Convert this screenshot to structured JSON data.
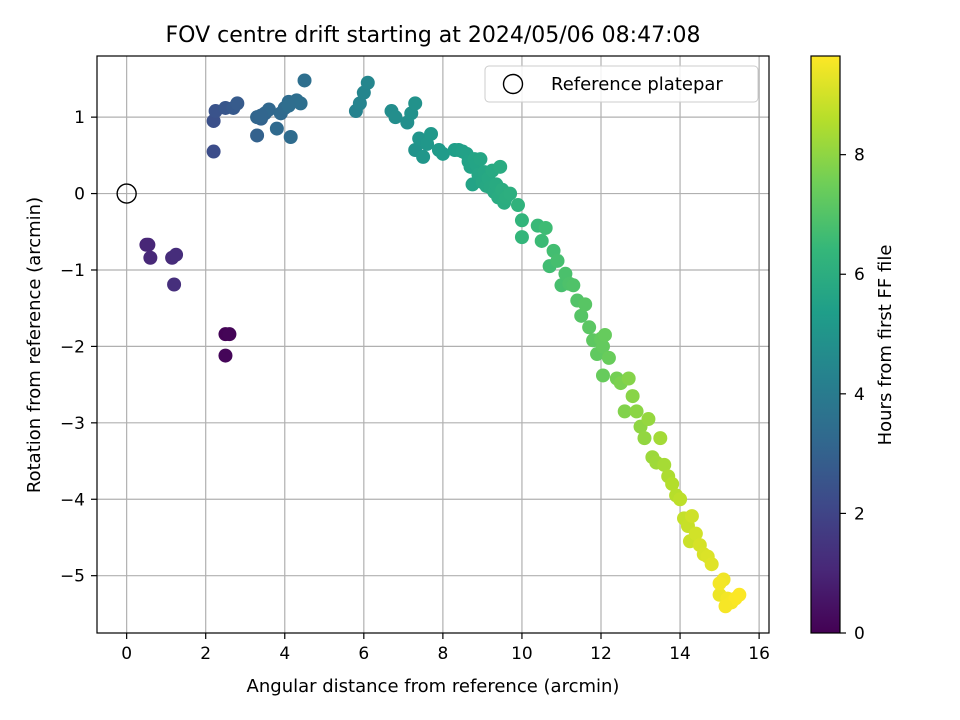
{
  "chart_data": {
    "type": "scatter",
    "title": "FOV centre drift starting at 2024/05/06 08:47:08",
    "xlabel": "Angular distance from reference (arcmin)",
    "ylabel": "Rotation from reference (arcmin)",
    "xlim": [
      -0.75,
      16.25
    ],
    "ylim": [
      -5.75,
      1.8
    ],
    "xticks": [
      0,
      2,
      4,
      6,
      8,
      10,
      12,
      14,
      16
    ],
    "yticks": [
      1,
      0,
      -1,
      -2,
      -3,
      -4,
      -5
    ],
    "xtick_labels": [
      "0",
      "2",
      "4",
      "6",
      "8",
      "10",
      "12",
      "14",
      "16"
    ],
    "ytick_labels": [
      "1",
      "0",
      "−1",
      "−2",
      "−3",
      "−4",
      "−5"
    ],
    "grid": true,
    "legend": {
      "placement": "top-right",
      "entries": [
        {
          "label": "Reference platepar",
          "marker": "open-circle"
        }
      ]
    },
    "reference_point": {
      "x": 0,
      "y": 0
    },
    "colorbar": {
      "label": "Hours from first FF file",
      "range": [
        0,
        9.65
      ],
      "ticks": [
        0,
        2,
        4,
        6,
        8
      ],
      "tick_labels": [
        "0",
        "2",
        "4",
        "6",
        "8"
      ],
      "colormap": "viridis",
      "stops": [
        "#440154",
        "#482878",
        "#3e4989",
        "#31688e",
        "#26828e",
        "#1f9e89",
        "#35b779",
        "#6ece58",
        "#b5de2b",
        "#fde725"
      ]
    },
    "series": [
      {
        "x": [
          2.5,
          2.6,
          2.5,
          0.5,
          0.55,
          0.6,
          1.15,
          1.25,
          1.2,
          2.2,
          2.2,
          2.25,
          2.5,
          2.7,
          2.8,
          3.3,
          3.4,
          3.5,
          3.6,
          3.3,
          3.4,
          3.8,
          3.9,
          4.0,
          4.1,
          4.15,
          4.3,
          4.4,
          4.1,
          4.5,
          5.8,
          5.9,
          6.0,
          6.1,
          6.7,
          6.8,
          7.1,
          7.2,
          7.3,
          7.3,
          7.4,
          7.5,
          7.6,
          7.7,
          7.9,
          8.0,
          8.3,
          8.4,
          8.5,
          8.6,
          8.65,
          8.7,
          8.75,
          8.8,
          8.85,
          8.9,
          8.95,
          9.0,
          9.05,
          9.1,
          9.15,
          9.2,
          9.25,
          9.3,
          9.35,
          9.4,
          9.45,
          9.5,
          9.55,
          9.6,
          9.7,
          9.9,
          10.0,
          10.0,
          10.4,
          10.5,
          10.6,
          10.7,
          10.8,
          10.9,
          11.0,
          11.1,
          11.2,
          11.3,
          11.4,
          11.5,
          11.6,
          11.7,
          11.8,
          11.9,
          12.0,
          12.05,
          12.1,
          12.2,
          12.05,
          12.4,
          12.5,
          12.6,
          12.7,
          12.8,
          12.9,
          13.0,
          13.1,
          13.2,
          13.3,
          13.4,
          13.5,
          13.6,
          13.7,
          13.8,
          13.9,
          14.0,
          14.1,
          14.2,
          14.25,
          14.3,
          14.4,
          14.5,
          14.6,
          14.7,
          14.8,
          15.0,
          15.1,
          15.2,
          15.3,
          15.4,
          15.5,
          15.0,
          15.15
        ],
        "y": [
          -1.84,
          -1.84,
          -2.12,
          -0.67,
          -0.67,
          -0.84,
          -0.84,
          -0.8,
          -1.19,
          0.55,
          0.95,
          1.08,
          1.12,
          1.12,
          1.18,
          0.76,
          0.98,
          1.05,
          1.1,
          1.0,
          1.02,
          0.85,
          1.05,
          1.12,
          1.2,
          0.74,
          1.22,
          1.18,
          1.15,
          1.48,
          1.08,
          1.18,
          1.32,
          1.45,
          1.08,
          1.0,
          0.93,
          1.05,
          1.18,
          0.57,
          0.72,
          0.48,
          0.65,
          0.78,
          0.57,
          0.52,
          0.57,
          0.57,
          0.55,
          0.52,
          0.42,
          0.35,
          0.12,
          0.45,
          0.38,
          0.25,
          0.45,
          0.15,
          0.28,
          0.1,
          0.2,
          0.08,
          0.3,
          0.02,
          0.12,
          -0.05,
          0.35,
          0.05,
          -0.12,
          -0.05,
          0.0,
          -0.15,
          -0.35,
          -0.57,
          -0.42,
          -0.62,
          -0.45,
          -0.95,
          -0.75,
          -0.88,
          -1.2,
          -1.05,
          -1.18,
          -1.2,
          -1.4,
          -1.6,
          -1.45,
          -1.75,
          -1.92,
          -2.1,
          -1.9,
          -2.0,
          -1.85,
          -2.15,
          -2.38,
          -2.42,
          -2.48,
          -2.85,
          -2.42,
          -2.65,
          -2.85,
          -3.05,
          -3.2,
          -2.95,
          -3.45,
          -3.52,
          -3.2,
          -3.55,
          -3.7,
          -3.8,
          -3.95,
          -4.0,
          -4.25,
          -4.35,
          -4.55,
          -4.22,
          -4.45,
          -4.6,
          -4.72,
          -4.75,
          -4.85,
          -5.25,
          -5.05,
          -5.3,
          -5.35,
          -5.3,
          -5.25,
          -5.1,
          -5.4
        ],
        "t": [
          0.05,
          0.1,
          0.15,
          1.0,
          1.05,
          1.1,
          1.2,
          1.25,
          1.3,
          2.3,
          2.4,
          2.5,
          2.6,
          2.7,
          2.75,
          3.0,
          3.05,
          3.1,
          3.2,
          3.1,
          3.15,
          3.3,
          3.3,
          3.35,
          3.4,
          3.4,
          3.45,
          3.5,
          3.45,
          3.5,
          4.3,
          4.35,
          4.4,
          4.45,
          4.7,
          4.75,
          4.8,
          4.85,
          4.9,
          4.95,
          5.0,
          5.05,
          5.1,
          5.15,
          5.2,
          5.25,
          5.35,
          5.4,
          5.45,
          5.5,
          5.52,
          5.55,
          5.57,
          5.6,
          5.62,
          5.65,
          5.67,
          5.7,
          5.72,
          5.75,
          5.77,
          5.8,
          5.82,
          5.85,
          5.87,
          5.9,
          5.92,
          5.95,
          5.97,
          6.0,
          6.05,
          6.2,
          6.3,
          6.35,
          6.5,
          6.55,
          6.6,
          6.65,
          6.7,
          6.75,
          6.8,
          6.85,
          6.9,
          6.95,
          7.0,
          7.05,
          7.1,
          7.15,
          7.2,
          7.25,
          7.3,
          7.32,
          7.35,
          7.4,
          7.38,
          7.6,
          7.7,
          7.8,
          7.85,
          7.9,
          7.95,
          8.0,
          8.05,
          8.1,
          8.2,
          8.25,
          8.3,
          8.35,
          8.45,
          8.55,
          8.6,
          8.7,
          8.8,
          8.85,
          8.9,
          8.95,
          9.0,
          9.05,
          9.1,
          9.15,
          9.2,
          9.4,
          9.45,
          9.5,
          9.55,
          9.6,
          9.62,
          9.5,
          9.55
        ]
      }
    ]
  }
}
